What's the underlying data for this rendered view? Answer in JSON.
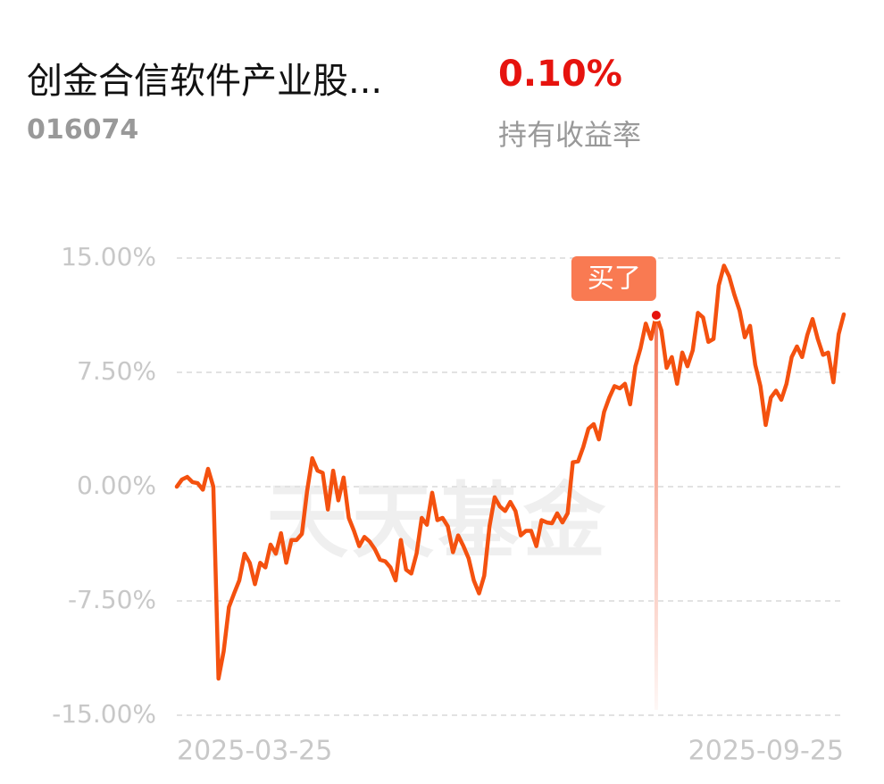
{
  "header": {
    "fund_name": "创金合信软件产业股...",
    "fund_code": "016074",
    "return_value": "0.10%",
    "return_label": "持有收益率"
  },
  "chart_data": {
    "type": "line",
    "watermark": "天天基金",
    "categories": [
      "2025-03-25",
      null,
      null,
      null,
      null,
      null,
      null,
      null,
      null,
      null,
      null,
      null,
      null,
      null,
      null,
      null,
      null,
      null,
      null,
      null,
      null,
      null,
      null,
      null,
      null,
      null,
      null,
      null,
      null,
      null,
      null,
      null,
      null,
      null,
      null,
      null,
      null,
      null,
      null,
      null,
      null,
      null,
      null,
      null,
      null,
      null,
      null,
      null,
      null,
      null,
      null,
      null,
      null,
      null,
      null,
      null,
      null,
      null,
      null,
      null,
      null,
      null,
      null,
      null,
      null,
      null,
      null,
      null,
      null,
      null,
      null,
      null,
      null,
      null,
      null,
      null,
      null,
      null,
      null,
      null,
      null,
      null,
      null,
      null,
      null,
      null,
      null,
      null,
      null,
      null,
      null,
      null,
      null,
      null,
      null,
      null,
      null,
      null,
      null,
      null,
      null,
      null,
      null,
      null,
      null,
      null,
      null,
      null,
      null,
      null,
      null,
      null,
      null,
      null,
      null,
      null,
      null,
      null,
      null,
      null,
      null,
      null,
      null,
      null,
      null,
      null,
      null,
      null,
      "2025-09-25"
    ],
    "series": [
      {
        "color": "#f4510f",
        "values": [
          0,
          0.47,
          0.64,
          0.3,
          0.23,
          -0.2,
          1.17,
          0,
          -12.6,
          -10.8,
          -7.9,
          -7.0,
          -6.15,
          -4.4,
          -5.0,
          -6.4,
          -5.0,
          -5.3,
          -3.8,
          -4.4,
          -3.05,
          -5.0,
          -3.5,
          -3.5,
          -3.1,
          -0.3,
          1.87,
          1.05,
          0.9,
          -1.5,
          1.05,
          -0.9,
          0.6,
          -2.05,
          -2.9,
          -3.9,
          -3.3,
          -3.6,
          -4.1,
          -4.8,
          -4.9,
          -5.3,
          -6.15,
          -3.5,
          -5.45,
          -5.7,
          -4.4,
          -2.05,
          -2.5,
          -0.4,
          -2.2,
          -2.05,
          -2.6,
          -4.3,
          -3.2,
          -3.9,
          -4.7,
          -6.15,
          -7.0,
          -5.85,
          -2.6,
          -0.7,
          -1.3,
          -1.6,
          -1.0,
          -1.6,
          -3.2,
          -2.9,
          -2.9,
          -3.9,
          -2.2,
          -2.35,
          -2.4,
          -1.75,
          -2.35,
          -1.75,
          1.6,
          1.65,
          2.6,
          3.8,
          4.1,
          3.1,
          4.9,
          5.85,
          6.6,
          6.45,
          6.75,
          5.4,
          7.9,
          9.1,
          10.7,
          9.7,
          11.25,
          10.25,
          7.8,
          8.5,
          6.75,
          8.8,
          7.9,
          8.95,
          11.4,
          11.1,
          9.5,
          9.7,
          13.2,
          14.5,
          13.8,
          12.6,
          11.55,
          9.8,
          10.55,
          8.0,
          6.6,
          4.05,
          5.85,
          6.3,
          5.7,
          6.75,
          8.5,
          9.2,
          8.5,
          9.95,
          11.0,
          9.7,
          8.65,
          8.8,
          6.85,
          10.0,
          11.3
        ]
      }
    ],
    "annotations": [
      {
        "text": "买了",
        "point": 92
      }
    ],
    "ylim": [
      -15,
      15
    ],
    "yticks": [
      {
        "value": 15,
        "label": "15.00%"
      },
      {
        "value": 7.5,
        "label": "7.50%"
      },
      {
        "value": 0,
        "label": "0.00%"
      },
      {
        "value": -7.5,
        "label": "-7.50%"
      },
      {
        "value": -15,
        "label": "-15.00%"
      }
    ],
    "grid": true
  }
}
